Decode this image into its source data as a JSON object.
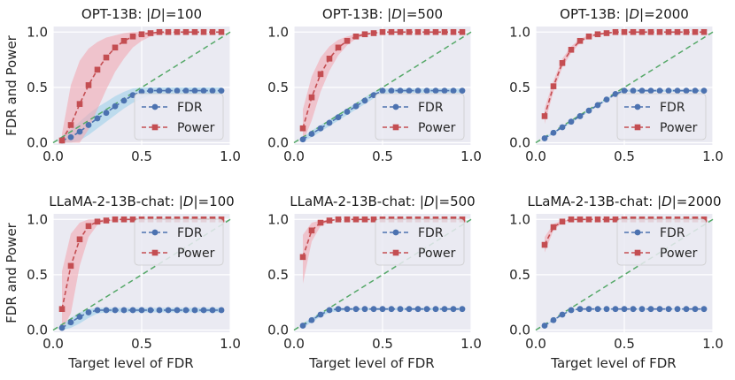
{
  "chart_data": [
    {
      "type": "line",
      "title_prefix": "OPT-13B: |",
      "title_italic": "D",
      "title_suffix": "|=100",
      "xlabel": "",
      "ylabel": "FDR and Power",
      "xlim": [
        0,
        1
      ],
      "ylim": [
        -0.02,
        1.05
      ],
      "x_ticks": [
        "0.0",
        "0.5",
        "1.0"
      ],
      "y_ticks": [
        "0.0",
        "0.5",
        "1.0"
      ],
      "legend_position": "lower-right",
      "x": [
        0.05,
        0.1,
        0.15,
        0.2,
        0.25,
        0.3,
        0.35,
        0.4,
        0.45,
        0.5,
        0.55,
        0.6,
        0.65,
        0.7,
        0.75,
        0.8,
        0.85,
        0.9,
        0.95
      ],
      "series": [
        {
          "name": "FDR",
          "color": "#4c72b0",
          "marker": "circle",
          "values": [
            0.02,
            0.05,
            0.1,
            0.16,
            0.22,
            0.27,
            0.33,
            0.38,
            0.43,
            0.46,
            0.47,
            0.47,
            0.47,
            0.47,
            0.47,
            0.47,
            0.47,
            0.47,
            0.47
          ],
          "lower": [
            0.0,
            0.0,
            0.02,
            0.07,
            0.13,
            0.19,
            0.25,
            0.31,
            0.36,
            0.4,
            0.43,
            0.44,
            0.44,
            0.44,
            0.44,
            0.44,
            0.44,
            0.44,
            0.44
          ],
          "upper": [
            0.06,
            0.12,
            0.19,
            0.26,
            0.32,
            0.37,
            0.42,
            0.46,
            0.49,
            0.5,
            0.5,
            0.5,
            0.5,
            0.5,
            0.5,
            0.5,
            0.5,
            0.5,
            0.5
          ]
        },
        {
          "name": "Power",
          "color": "#c44e52",
          "marker": "square",
          "values": [
            0.02,
            0.16,
            0.35,
            0.52,
            0.66,
            0.77,
            0.86,
            0.92,
            0.96,
            0.98,
            0.99,
            1.0,
            1.0,
            1.0,
            1.0,
            1.0,
            1.0,
            1.0,
            1.0
          ],
          "lower": [
            0.0,
            0.0,
            0.0,
            0.12,
            0.3,
            0.48,
            0.64,
            0.76,
            0.86,
            0.92,
            0.96,
            0.98,
            0.99,
            1.0,
            1.0,
            1.0,
            1.0,
            1.0,
            1.0
          ],
          "upper": [
            0.08,
            0.52,
            0.74,
            0.85,
            0.91,
            0.95,
            0.97,
            0.99,
            1.0,
            1.0,
            1.0,
            1.0,
            1.0,
            1.0,
            1.0,
            1.0,
            1.0,
            1.0,
            1.0
          ]
        }
      ],
      "reference_line": {
        "name": "y = x",
        "color": "#55a868"
      }
    },
    {
      "type": "line",
      "title_prefix": "OPT-13B: |",
      "title_italic": "D",
      "title_suffix": "|=500",
      "xlabel": "",
      "ylabel": "",
      "xlim": [
        0,
        1
      ],
      "ylim": [
        -0.02,
        1.05
      ],
      "x_ticks": [
        "0.0",
        "0.5",
        "1.0"
      ],
      "y_ticks": [
        "0.0",
        "0.5",
        "1.0"
      ],
      "legend_position": "lower-right",
      "x": [
        0.05,
        0.1,
        0.15,
        0.2,
        0.25,
        0.3,
        0.35,
        0.4,
        0.45,
        0.5,
        0.55,
        0.6,
        0.65,
        0.7,
        0.75,
        0.8,
        0.85,
        0.9,
        0.95
      ],
      "series": [
        {
          "name": "FDR",
          "color": "#4c72b0",
          "marker": "circle",
          "values": [
            0.03,
            0.08,
            0.13,
            0.18,
            0.23,
            0.28,
            0.33,
            0.38,
            0.43,
            0.47,
            0.47,
            0.47,
            0.47,
            0.47,
            0.47,
            0.47,
            0.47,
            0.47,
            0.47
          ],
          "lower": [
            0.01,
            0.05,
            0.1,
            0.15,
            0.2,
            0.25,
            0.3,
            0.35,
            0.4,
            0.44,
            0.45,
            0.45,
            0.45,
            0.45,
            0.45,
            0.45,
            0.45,
            0.45,
            0.45
          ],
          "upper": [
            0.05,
            0.11,
            0.16,
            0.21,
            0.26,
            0.31,
            0.36,
            0.41,
            0.46,
            0.49,
            0.49,
            0.49,
            0.49,
            0.49,
            0.49,
            0.49,
            0.49,
            0.49,
            0.49
          ]
        },
        {
          "name": "Power",
          "color": "#c44e52",
          "marker": "square",
          "values": [
            0.13,
            0.41,
            0.62,
            0.76,
            0.86,
            0.92,
            0.96,
            0.98,
            0.99,
            1.0,
            1.0,
            1.0,
            1.0,
            1.0,
            1.0,
            1.0,
            1.0,
            1.0,
            1.0
          ],
          "lower": [
            0.0,
            0.2,
            0.46,
            0.65,
            0.79,
            0.88,
            0.94,
            0.97,
            0.99,
            1.0,
            1.0,
            1.0,
            1.0,
            1.0,
            1.0,
            1.0,
            1.0,
            1.0,
            1.0
          ],
          "upper": [
            0.3,
            0.6,
            0.77,
            0.87,
            0.93,
            0.96,
            0.98,
            0.99,
            1.0,
            1.0,
            1.0,
            1.0,
            1.0,
            1.0,
            1.0,
            1.0,
            1.0,
            1.0,
            1.0
          ]
        }
      ],
      "reference_line": {
        "name": "y = x",
        "color": "#55a868"
      }
    },
    {
      "type": "line",
      "title_prefix": "OPT-13B: |",
      "title_italic": "D",
      "title_suffix": "|=2000",
      "xlabel": "",
      "ylabel": "",
      "xlim": [
        0,
        1
      ],
      "ylim": [
        -0.02,
        1.05
      ],
      "x_ticks": [
        "0.0",
        "0.5",
        "1.0"
      ],
      "y_ticks": [
        "0.0",
        "0.5",
        "1.0"
      ],
      "legend_position": "lower-right",
      "x": [
        0.05,
        0.1,
        0.15,
        0.2,
        0.25,
        0.3,
        0.35,
        0.4,
        0.45,
        0.5,
        0.55,
        0.6,
        0.65,
        0.7,
        0.75,
        0.8,
        0.85,
        0.9,
        0.95
      ],
      "series": [
        {
          "name": "FDR",
          "color": "#4c72b0",
          "marker": "circle",
          "values": [
            0.04,
            0.09,
            0.14,
            0.19,
            0.24,
            0.29,
            0.34,
            0.39,
            0.44,
            0.47,
            0.47,
            0.47,
            0.47,
            0.47,
            0.47,
            0.47,
            0.47,
            0.47,
            0.47
          ],
          "lower": [
            0.03,
            0.08,
            0.13,
            0.18,
            0.23,
            0.28,
            0.33,
            0.38,
            0.43,
            0.46,
            0.46,
            0.46,
            0.46,
            0.46,
            0.46,
            0.46,
            0.46,
            0.46,
            0.46
          ],
          "upper": [
            0.05,
            0.1,
            0.15,
            0.2,
            0.25,
            0.3,
            0.35,
            0.4,
            0.45,
            0.48,
            0.48,
            0.48,
            0.48,
            0.48,
            0.48,
            0.48,
            0.48,
            0.48,
            0.48
          ]
        },
        {
          "name": "Power",
          "color": "#c44e52",
          "marker": "square",
          "values": [
            0.24,
            0.51,
            0.72,
            0.84,
            0.92,
            0.96,
            0.98,
            0.99,
            1.0,
            1.0,
            1.0,
            1.0,
            1.0,
            1.0,
            1.0,
            1.0,
            1.0,
            1.0,
            1.0
          ],
          "lower": [
            0.17,
            0.46,
            0.68,
            0.81,
            0.9,
            0.95,
            0.97,
            0.99,
            1.0,
            1.0,
            1.0,
            1.0,
            1.0,
            1.0,
            1.0,
            1.0,
            1.0,
            1.0,
            1.0
          ],
          "upper": [
            0.31,
            0.56,
            0.76,
            0.87,
            0.94,
            0.97,
            0.99,
            1.0,
            1.0,
            1.0,
            1.0,
            1.0,
            1.0,
            1.0,
            1.0,
            1.0,
            1.0,
            1.0,
            1.0
          ]
        }
      ],
      "reference_line": {
        "name": "y = x",
        "color": "#55a868"
      }
    },
    {
      "type": "line",
      "title_prefix": "LLaMA-2-13B-chat: |",
      "title_italic": "D",
      "title_suffix": "|=100",
      "xlabel": "Target level of FDR",
      "ylabel": "FDR and Power",
      "xlim": [
        0,
        1
      ],
      "ylim": [
        -0.02,
        1.05
      ],
      "x_ticks": [
        "0.0",
        "0.5",
        "1.0"
      ],
      "y_ticks": [
        "0.0",
        "0.5",
        "1.0"
      ],
      "legend_position": "upper-right",
      "x": [
        0.05,
        0.1,
        0.15,
        0.2,
        0.25,
        0.3,
        0.35,
        0.4,
        0.45,
        0.5,
        0.55,
        0.6,
        0.65,
        0.7,
        0.75,
        0.8,
        0.85,
        0.9,
        0.95
      ],
      "series": [
        {
          "name": "FDR",
          "color": "#4c72b0",
          "marker": "circle",
          "values": [
            0.02,
            0.07,
            0.12,
            0.16,
            0.18,
            0.18,
            0.18,
            0.18,
            0.18,
            0.18,
            0.18,
            0.18,
            0.18,
            0.18,
            0.18,
            0.18,
            0.18,
            0.18,
            0.18
          ],
          "lower": [
            0.0,
            0.02,
            0.06,
            0.11,
            0.15,
            0.16,
            0.16,
            0.16,
            0.16,
            0.16,
            0.16,
            0.16,
            0.16,
            0.16,
            0.16,
            0.16,
            0.16,
            0.16,
            0.16
          ],
          "upper": [
            0.05,
            0.11,
            0.16,
            0.19,
            0.2,
            0.2,
            0.2,
            0.2,
            0.2,
            0.2,
            0.2,
            0.2,
            0.2,
            0.2,
            0.2,
            0.2,
            0.2,
            0.2,
            0.2
          ]
        },
        {
          "name": "Power",
          "color": "#c44e52",
          "marker": "square",
          "values": [
            0.19,
            0.58,
            0.82,
            0.94,
            0.98,
            0.99,
            1.0,
            1.0,
            1.0,
            1.0,
            1.0,
            1.0,
            1.0,
            1.0,
            1.0,
            1.0,
            1.0,
            1.0,
            1.0
          ],
          "lower": [
            0.0,
            0.15,
            0.58,
            0.84,
            0.95,
            0.98,
            0.99,
            1.0,
            1.0,
            1.0,
            1.0,
            1.0,
            1.0,
            1.0,
            1.0,
            1.0,
            1.0,
            1.0,
            1.0
          ],
          "upper": [
            0.53,
            0.87,
            0.97,
            1.0,
            1.0,
            1.0,
            1.0,
            1.0,
            1.0,
            1.0,
            1.0,
            1.0,
            1.0,
            1.0,
            1.0,
            1.0,
            1.0,
            1.0,
            1.0
          ]
        }
      ],
      "reference_line": {
        "name": "y = x",
        "color": "#55a868"
      }
    },
    {
      "type": "line",
      "title_prefix": "LLaMA-2-13B-chat: |",
      "title_italic": "D",
      "title_suffix": "|=500",
      "xlabel": "Target level of FDR",
      "ylabel": "",
      "xlim": [
        0,
        1
      ],
      "ylim": [
        -0.02,
        1.05
      ],
      "x_ticks": [
        "0.0",
        "0.5",
        "1.0"
      ],
      "y_ticks": [
        "0.0",
        "0.5",
        "1.0"
      ],
      "legend_position": "upper-right",
      "x": [
        0.05,
        0.1,
        0.15,
        0.2,
        0.25,
        0.3,
        0.35,
        0.4,
        0.45,
        0.5,
        0.55,
        0.6,
        0.65,
        0.7,
        0.75,
        0.8,
        0.85,
        0.9,
        0.95
      ],
      "series": [
        {
          "name": "FDR",
          "color": "#4c72b0",
          "marker": "circle",
          "values": [
            0.04,
            0.09,
            0.14,
            0.18,
            0.19,
            0.19,
            0.19,
            0.19,
            0.19,
            0.19,
            0.19,
            0.19,
            0.19,
            0.19,
            0.19,
            0.19,
            0.19,
            0.19,
            0.19
          ],
          "lower": [
            0.02,
            0.07,
            0.12,
            0.16,
            0.17,
            0.18,
            0.18,
            0.18,
            0.18,
            0.18,
            0.18,
            0.18,
            0.18,
            0.18,
            0.18,
            0.18,
            0.18,
            0.18,
            0.18
          ],
          "upper": [
            0.06,
            0.11,
            0.16,
            0.2,
            0.2,
            0.2,
            0.2,
            0.2,
            0.2,
            0.2,
            0.2,
            0.2,
            0.2,
            0.2,
            0.2,
            0.2,
            0.2,
            0.2,
            0.2
          ]
        },
        {
          "name": "Power",
          "color": "#c44e52",
          "marker": "square",
          "values": [
            0.66,
            0.9,
            0.97,
            0.99,
            1.0,
            1.0,
            1.0,
            1.0,
            1.0,
            1.0,
            1.0,
            1.0,
            1.0,
            1.0,
            1.0,
            1.0,
            1.0,
            1.0,
            1.0
          ],
          "lower": [
            0.42,
            0.8,
            0.94,
            0.98,
            1.0,
            1.0,
            1.0,
            1.0,
            1.0,
            1.0,
            1.0,
            1.0,
            1.0,
            1.0,
            1.0,
            1.0,
            1.0,
            1.0,
            1.0
          ],
          "upper": [
            0.86,
            0.97,
            0.99,
            1.0,
            1.0,
            1.0,
            1.0,
            1.0,
            1.0,
            1.0,
            1.0,
            1.0,
            1.0,
            1.0,
            1.0,
            1.0,
            1.0,
            1.0,
            1.0
          ]
        }
      ],
      "reference_line": {
        "name": "y = x",
        "color": "#55a868"
      }
    },
    {
      "type": "line",
      "title_prefix": "LLaMA-2-13B-chat: |",
      "title_italic": "D",
      "title_suffix": "|=2000",
      "xlabel": "Target level of FDR",
      "ylabel": "",
      "xlim": [
        0,
        1
      ],
      "ylim": [
        -0.02,
        1.05
      ],
      "x_ticks": [
        "0.0",
        "0.5",
        "1.0"
      ],
      "y_ticks": [
        "0.0",
        "0.5",
        "1.0"
      ],
      "legend_position": "upper-right",
      "x": [
        0.05,
        0.1,
        0.15,
        0.2,
        0.25,
        0.3,
        0.35,
        0.4,
        0.45,
        0.5,
        0.55,
        0.6,
        0.65,
        0.7,
        0.75,
        0.8,
        0.85,
        0.9,
        0.95
      ],
      "series": [
        {
          "name": "FDR",
          "color": "#4c72b0",
          "marker": "circle",
          "values": [
            0.04,
            0.09,
            0.14,
            0.18,
            0.19,
            0.19,
            0.19,
            0.19,
            0.19,
            0.19,
            0.19,
            0.19,
            0.19,
            0.19,
            0.19,
            0.19,
            0.19,
            0.19,
            0.19
          ],
          "lower": [
            0.035,
            0.085,
            0.135,
            0.175,
            0.185,
            0.185,
            0.185,
            0.185,
            0.185,
            0.185,
            0.185,
            0.185,
            0.185,
            0.185,
            0.185,
            0.185,
            0.185,
            0.185,
            0.185
          ],
          "upper": [
            0.045,
            0.095,
            0.145,
            0.185,
            0.195,
            0.195,
            0.195,
            0.195,
            0.195,
            0.195,
            0.195,
            0.195,
            0.195,
            0.195,
            0.195,
            0.195,
            0.195,
            0.195,
            0.195
          ]
        },
        {
          "name": "Power",
          "color": "#c44e52",
          "marker": "square",
          "values": [
            0.77,
            0.93,
            0.98,
            1.0,
            1.0,
            1.0,
            1.0,
            1.0,
            1.0,
            1.0,
            1.0,
            1.0,
            1.0,
            1.0,
            1.0,
            1.0,
            1.0,
            1.0,
            1.0
          ],
          "lower": [
            0.7,
            0.9,
            0.97,
            0.99,
            1.0,
            1.0,
            1.0,
            1.0,
            1.0,
            1.0,
            1.0,
            1.0,
            1.0,
            1.0,
            1.0,
            1.0,
            1.0,
            1.0,
            1.0
          ],
          "upper": [
            0.84,
            0.96,
            0.99,
            1.0,
            1.0,
            1.0,
            1.0,
            1.0,
            1.0,
            1.0,
            1.0,
            1.0,
            1.0,
            1.0,
            1.0,
            1.0,
            1.0,
            1.0,
            1.0
          ]
        }
      ],
      "reference_line": {
        "name": "y = x",
        "color": "#55a868"
      }
    }
  ]
}
